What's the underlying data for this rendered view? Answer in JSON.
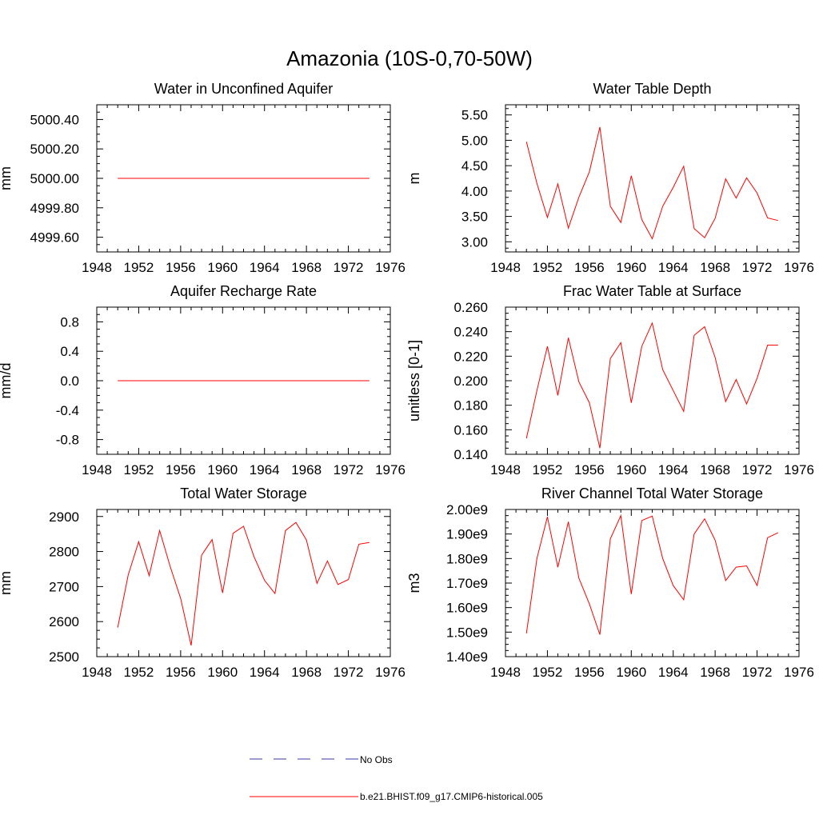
{
  "figure": {
    "title": "Amazonia (10S-0,70-50W)"
  },
  "legend": {
    "entries": [
      {
        "label": "No Obs",
        "color": "#3a3aa0",
        "style": "dashed"
      },
      {
        "label": "b.e21.BHIST.f09_g17.CMIP6-historical.005",
        "color": "#ff0000",
        "style": "solid"
      }
    ]
  },
  "colors": {
    "series": "#ff0000",
    "axis": "#000000"
  },
  "chart_data": [
    {
      "type": "line",
      "title": "Water in Unconfined Aquifer",
      "ylabel": "mm",
      "xlim": [
        1948,
        1976
      ],
      "ylim": [
        4999.5,
        5000.5
      ],
      "xticks": [
        1948,
        1952,
        1956,
        1960,
        1964,
        1968,
        1972,
        1976
      ],
      "xtick_labels": [
        "1948",
        "1952",
        "1956",
        "1960",
        "1964",
        "1968",
        "1972",
        "1976"
      ],
      "yticks": [
        4999.6,
        4999.8,
        5000.0,
        5000.2,
        5000.4
      ],
      "ytick_labels": [
        "4999.60",
        "4999.80",
        "5000.00",
        "5000.20",
        "5000.40"
      ],
      "x": [
        1950,
        1951,
        1952,
        1953,
        1954,
        1955,
        1956,
        1957,
        1958,
        1959,
        1960,
        1961,
        1962,
        1963,
        1964,
        1965,
        1966,
        1967,
        1968,
        1969,
        1970,
        1971,
        1972,
        1973,
        1974
      ],
      "series": [
        {
          "name": "b.e21.BHIST.f09_g17.CMIP6-historical.005",
          "values": [
            5000,
            5000,
            5000,
            5000,
            5000,
            5000,
            5000,
            5000,
            5000,
            5000,
            5000,
            5000,
            5000,
            5000,
            5000,
            5000,
            5000,
            5000,
            5000,
            5000,
            5000,
            5000,
            5000,
            5000,
            5000
          ]
        }
      ]
    },
    {
      "type": "line",
      "title": "Water Table Depth",
      "ylabel": "m",
      "xlim": [
        1948,
        1976
      ],
      "ylim": [
        2.8,
        5.7
      ],
      "xticks": [
        1948,
        1952,
        1956,
        1960,
        1964,
        1968,
        1972,
        1976
      ],
      "xtick_labels": [
        "1948",
        "1952",
        "1956",
        "1960",
        "1964",
        "1968",
        "1972",
        "1976"
      ],
      "yticks": [
        3.0,
        3.5,
        4.0,
        4.5,
        5.0,
        5.5
      ],
      "ytick_labels": [
        "3.00",
        "3.50",
        "4.00",
        "4.50",
        "5.00",
        "5.50"
      ],
      "x": [
        1950,
        1951,
        1952,
        1953,
        1954,
        1955,
        1956,
        1957,
        1958,
        1959,
        1960,
        1961,
        1962,
        1963,
        1964,
        1965,
        1966,
        1967,
        1968,
        1969,
        1970,
        1971,
        1972,
        1973,
        1974
      ],
      "series": [
        {
          "name": "b.e21.BHIST.f09_g17.CMIP6-historical.005",
          "values": [
            4.97,
            4.15,
            3.48,
            4.14,
            3.27,
            3.88,
            4.38,
            5.26,
            3.7,
            3.38,
            4.3,
            3.44,
            3.06,
            3.7,
            4.07,
            4.49,
            3.26,
            3.08,
            3.46,
            4.24,
            3.86,
            4.26,
            3.96,
            3.47,
            3.42
          ]
        }
      ]
    },
    {
      "type": "line",
      "title": "Aquifer Recharge Rate",
      "ylabel": "mm/d",
      "xlim": [
        1948,
        1976
      ],
      "ylim": [
        -1.0,
        1.0
      ],
      "xticks": [
        1948,
        1952,
        1956,
        1960,
        1964,
        1968,
        1972,
        1976
      ],
      "xtick_labels": [
        "1948",
        "1952",
        "1956",
        "1960",
        "1964",
        "1968",
        "1972",
        "1976"
      ],
      "yticks": [
        -0.8,
        -0.4,
        0.0,
        0.4,
        0.8
      ],
      "ytick_labels": [
        "-0.8",
        "-0.4",
        "0.0",
        "0.4",
        "0.8"
      ],
      "x": [
        1950,
        1951,
        1952,
        1953,
        1954,
        1955,
        1956,
        1957,
        1958,
        1959,
        1960,
        1961,
        1962,
        1963,
        1964,
        1965,
        1966,
        1967,
        1968,
        1969,
        1970,
        1971,
        1972,
        1973,
        1974
      ],
      "series": [
        {
          "name": "b.e21.BHIST.f09_g17.CMIP6-historical.005",
          "values": [
            0,
            0,
            0,
            0,
            0,
            0,
            0,
            0,
            0,
            0,
            0,
            0,
            0,
            0,
            0,
            0,
            0,
            0,
            0,
            0,
            0,
            0,
            0,
            0,
            0
          ]
        }
      ]
    },
    {
      "type": "line",
      "title": "Frac Water Table at Surface",
      "ylabel": "unitless [0-1]",
      "xlim": [
        1948,
        1976
      ],
      "ylim": [
        0.14,
        0.26
      ],
      "xticks": [
        1948,
        1952,
        1956,
        1960,
        1964,
        1968,
        1972,
        1976
      ],
      "xtick_labels": [
        "1948",
        "1952",
        "1956",
        "1960",
        "1964",
        "1968",
        "1972",
        "1976"
      ],
      "yticks": [
        0.14,
        0.16,
        0.18,
        0.2,
        0.22,
        0.24,
        0.26
      ],
      "ytick_labels": [
        "0.140",
        "0.160",
        "0.180",
        "0.200",
        "0.220",
        "0.240",
        "0.260"
      ],
      "x": [
        1950,
        1951,
        1952,
        1953,
        1954,
        1955,
        1956,
        1957,
        1958,
        1959,
        1960,
        1961,
        1962,
        1963,
        1964,
        1965,
        1966,
        1967,
        1968,
        1969,
        1970,
        1971,
        1972,
        1973,
        1974
      ],
      "series": [
        {
          "name": "b.e21.BHIST.f09_g17.CMIP6-historical.005",
          "values": [
            0.153,
            0.192,
            0.228,
            0.188,
            0.235,
            0.199,
            0.182,
            0.145,
            0.218,
            0.231,
            0.182,
            0.228,
            0.247,
            0.209,
            0.192,
            0.175,
            0.237,
            0.244,
            0.219,
            0.183,
            0.201,
            0.181,
            0.202,
            0.229,
            0.229
          ]
        }
      ]
    },
    {
      "type": "line",
      "title": "Total Water Storage",
      "ylabel": "mm",
      "xlim": [
        1948,
        1976
      ],
      "ylim": [
        2500,
        2920
      ],
      "xticks": [
        1948,
        1952,
        1956,
        1960,
        1964,
        1968,
        1972,
        1976
      ],
      "xtick_labels": [
        "1948",
        "1952",
        "1956",
        "1960",
        "1964",
        "1968",
        "1972",
        "1976"
      ],
      "yticks": [
        2500,
        2600,
        2700,
        2800,
        2900
      ],
      "ytick_labels": [
        "2500",
        "2600",
        "2700",
        "2800",
        "2900"
      ],
      "x": [
        1950,
        1951,
        1952,
        1953,
        1954,
        1955,
        1956,
        1957,
        1958,
        1959,
        1960,
        1961,
        1962,
        1963,
        1964,
        1965,
        1966,
        1967,
        1968,
        1969,
        1970,
        1971,
        1972,
        1973,
        1974
      ],
      "series": [
        {
          "name": "b.e21.BHIST.f09_g17.CMIP6-historical.005",
          "values": [
            2583,
            2733,
            2828,
            2731,
            2860,
            2757,
            2666,
            2532,
            2790,
            2834,
            2682,
            2852,
            2872,
            2785,
            2718,
            2680,
            2860,
            2883,
            2833,
            2709,
            2773,
            2706,
            2720,
            2821,
            2826
          ]
        }
      ]
    },
    {
      "type": "line",
      "title": "River Channel Total Water Storage",
      "ylabel": "m3",
      "xlim": [
        1948,
        1976
      ],
      "ylim": [
        1400000000.0,
        2000000000.0
      ],
      "xticks": [
        1948,
        1952,
        1956,
        1960,
        1964,
        1968,
        1972,
        1976
      ],
      "xtick_labels": [
        "1948",
        "1952",
        "1956",
        "1960",
        "1964",
        "1968",
        "1972",
        "1976"
      ],
      "yticks": [
        1400000000.0,
        1500000000.0,
        1600000000.0,
        1700000000.0,
        1800000000.0,
        1900000000.0,
        2000000000.0
      ],
      "ytick_labels": [
        "1.40e9",
        "1.50e9",
        "1.60e9",
        "1.70e9",
        "1.80e9",
        "1.90e9",
        "2.00e9"
      ],
      "x": [
        1950,
        1951,
        1952,
        1953,
        1954,
        1955,
        1956,
        1957,
        1958,
        1959,
        1960,
        1961,
        1962,
        1963,
        1964,
        1965,
        1966,
        1967,
        1968,
        1969,
        1970,
        1971,
        1972,
        1973,
        1974
      ],
      "series": [
        {
          "name": "b.e21.BHIST.f09_g17.CMIP6-historical.005",
          "values": [
            1495000000.0,
            1800000000.0,
            1970000000.0,
            1765000000.0,
            1950000000.0,
            1720000000.0,
            1615000000.0,
            1490000000.0,
            1880000000.0,
            1975000000.0,
            1655000000.0,
            1955000000.0,
            1973000000.0,
            1800000000.0,
            1690000000.0,
            1632000000.0,
            1900000000.0,
            1962000000.0,
            1875000000.0,
            1710000000.0,
            1765000000.0,
            1770000000.0,
            1690000000.0,
            1885000000.0,
            1905000000.0
          ]
        }
      ]
    }
  ]
}
